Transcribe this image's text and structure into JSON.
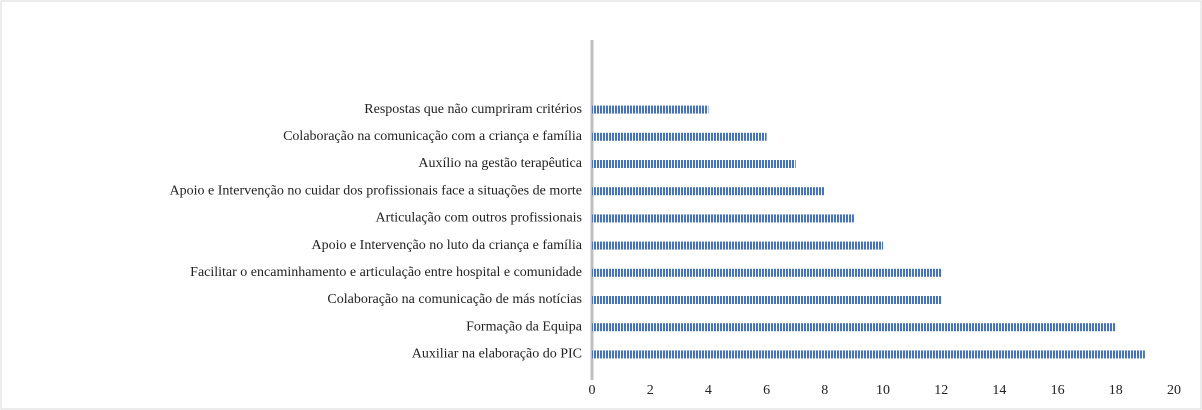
{
  "chart_data": {
    "type": "barh",
    "categories": [
      "Respostas que não cumpriram critérios",
      "Colaboração na comunicação com a criança e família",
      "Auxílio na gestão terapêutica",
      "Apoio e Intervenção no cuidar dos profissionais face a situações de morte",
      "Articulação com outros profissionais",
      "Apoio e Intervenção no luto da criança e família",
      "Facilitar o encaminhamento e articulação entre hospital e comunidade",
      "Colaboração na comunicação de más notícias",
      "Formação da Equipa",
      "Auxiliar na elaboração do PIC"
    ],
    "values": [
      4,
      6,
      7,
      8,
      9,
      10,
      12,
      12,
      18,
      19
    ],
    "color": "#4472c4",
    "xlim": [
      0,
      20
    ],
    "xticks": [
      0,
      2,
      4,
      6,
      8,
      10,
      12,
      14,
      16,
      18,
      20
    ],
    "grid": false
  }
}
